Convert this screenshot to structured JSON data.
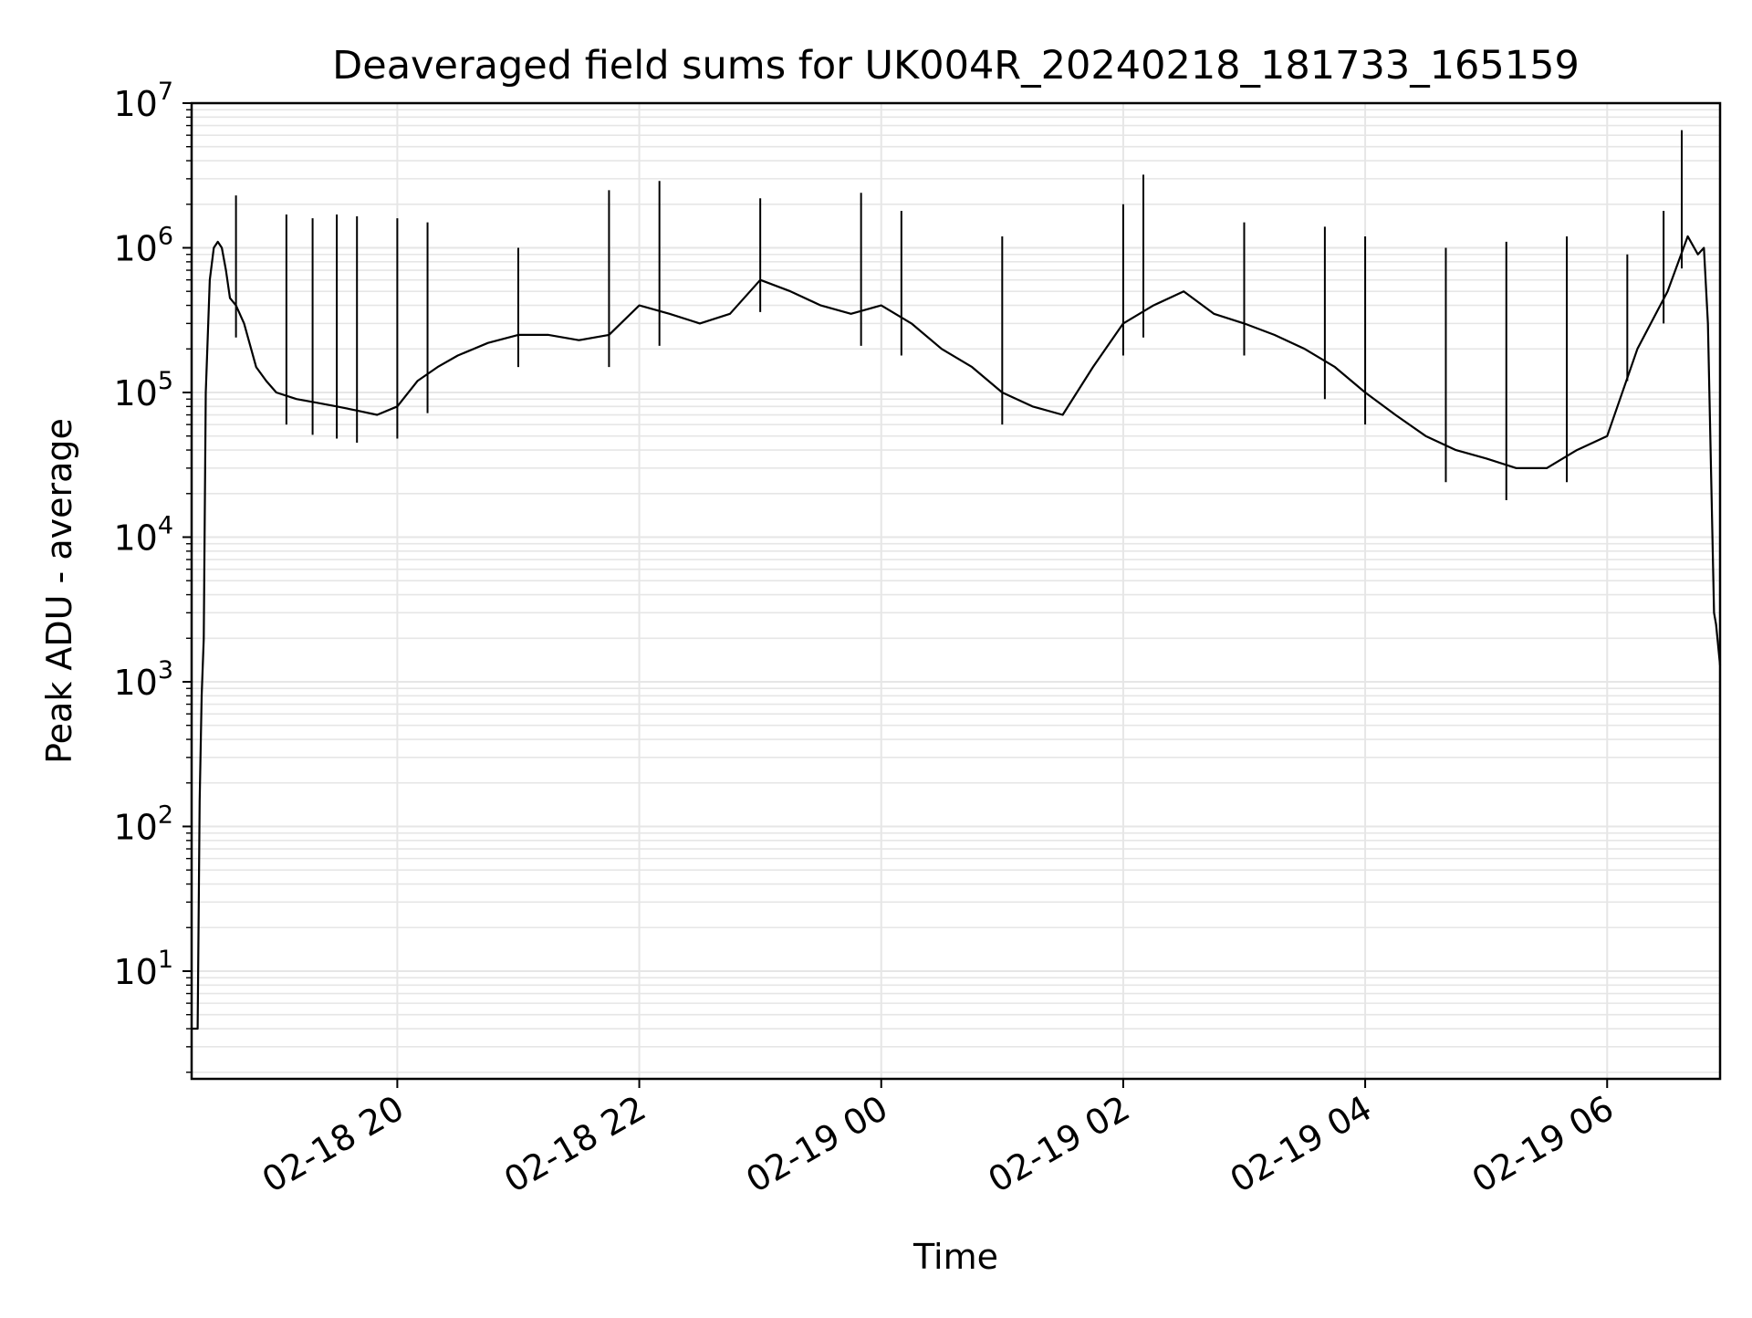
{
  "chart_data": {
    "type": "line",
    "title": "Deaveraged field sums for UK004R_20240218_181733_165159",
    "xlabel": "Time",
    "ylabel": "Peak ADU - average",
    "yscale": "log",
    "ylim": [
      1.8,
      10000000
    ],
    "xlim": [
      "2024-02-18 18:18",
      "2024-02-19 06:56"
    ],
    "grid": true,
    "line_color": "#000000",
    "grid_color": "#e6e6e6",
    "x_ticks": [
      {
        "value": "2024-02-18 20:00",
        "label": "02-18 20"
      },
      {
        "value": "2024-02-18 22:00",
        "label": "02-18 22"
      },
      {
        "value": "2024-02-19 00:00",
        "label": "02-19 00"
      },
      {
        "value": "2024-02-19 02:00",
        "label": "02-19 02"
      },
      {
        "value": "2024-02-19 04:00",
        "label": "02-19 04"
      },
      {
        "value": "2024-02-19 06:00",
        "label": "02-19 06"
      }
    ],
    "y_ticks": [
      {
        "value": 10,
        "base": "10",
        "exp": "1"
      },
      {
        "value": 100,
        "base": "10",
        "exp": "2"
      },
      {
        "value": 1000,
        "base": "10",
        "exp": "3"
      },
      {
        "value": 10000,
        "base": "10",
        "exp": "4"
      },
      {
        "value": 100000,
        "base": "10",
        "exp": "5"
      },
      {
        "value": 1000000,
        "base": "10",
        "exp": "6"
      },
      {
        "value": 10000000,
        "base": "10",
        "exp": "7"
      }
    ],
    "series": [
      {
        "x": [
          "2024-02-18 18:18",
          "2024-02-18 18:20",
          "2024-02-18 18:21",
          "2024-02-18 18:22",
          "2024-02-18 18:23",
          "2024-02-18 18:24",
          "2024-02-18 18:25",
          "2024-02-18 18:27",
          "2024-02-18 18:29",
          "2024-02-18 18:31",
          "2024-02-18 18:33",
          "2024-02-18 18:35",
          "2024-02-18 18:37",
          "2024-02-18 18:40",
          "2024-02-18 18:44",
          "2024-02-18 18:50",
          "2024-02-18 18:55",
          "2024-02-18 19:00",
          "2024-02-18 19:10",
          "2024-02-18 19:20",
          "2024-02-18 19:30",
          "2024-02-18 19:40",
          "2024-02-18 19:50",
          "2024-02-18 20:00",
          "2024-02-18 20:10",
          "2024-02-18 20:20",
          "2024-02-18 20:30",
          "2024-02-18 20:45",
          "2024-02-18 21:00",
          "2024-02-18 21:15",
          "2024-02-18 21:30",
          "2024-02-18 21:45",
          "2024-02-18 22:00",
          "2024-02-18 22:15",
          "2024-02-18 22:30",
          "2024-02-18 22:45",
          "2024-02-18 23:00",
          "2024-02-18 23:15",
          "2024-02-18 23:30",
          "2024-02-18 23:45",
          "2024-02-19 00:00",
          "2024-02-19 00:15",
          "2024-02-19 00:30",
          "2024-02-19 00:45",
          "2024-02-19 01:00",
          "2024-02-19 01:15",
          "2024-02-19 01:30",
          "2024-02-19 01:45",
          "2024-02-19 02:00",
          "2024-02-19 02:15",
          "2024-02-19 02:30",
          "2024-02-19 02:45",
          "2024-02-19 03:00",
          "2024-02-19 03:15",
          "2024-02-19 03:30",
          "2024-02-19 03:45",
          "2024-02-19 04:00",
          "2024-02-19 04:15",
          "2024-02-19 04:30",
          "2024-02-19 04:45",
          "2024-02-19 05:00",
          "2024-02-19 05:15",
          "2024-02-19 05:30",
          "2024-02-19 05:45",
          "2024-02-19 06:00",
          "2024-02-19 06:15",
          "2024-02-19 06:30",
          "2024-02-19 06:40",
          "2024-02-19 06:45",
          "2024-02-19 06:48",
          "2024-02-19 06:50",
          "2024-02-19 06:53",
          "2024-02-19 06:54",
          "2024-02-19 06:56"
        ],
        "y": [
          4,
          4,
          4,
          150,
          800,
          2000,
          100000,
          600000,
          1000000,
          1100000,
          1000000,
          700000,
          450000,
          400000,
          300000,
          150000,
          120000,
          100000,
          90000,
          85000,
          80000,
          75000,
          70000,
          80000,
          120000,
          150000,
          180000,
          220000,
          250000,
          250000,
          230000,
          250000,
          400000,
          350000,
          300000,
          350000,
          600000,
          500000,
          400000,
          350000,
          400000,
          300000,
          200000,
          150000,
          100000,
          80000,
          70000,
          150000,
          300000,
          400000,
          500000,
          350000,
          300000,
          250000,
          200000,
          150000,
          100000,
          70000,
          50000,
          40000,
          35000,
          30000,
          30000,
          40000,
          50000,
          200000,
          500000,
          1200000,
          900000,
          1000000,
          300000,
          3000,
          2500,
          1300
        ]
      },
      {
        "name": "",
        "x": [
          "2024-02-18 18:40",
          "2024-02-18 19:05",
          "2024-02-18 19:18",
          "2024-02-18 19:30",
          "2024-02-18 19:40",
          "2024-02-18 20:00",
          "2024-02-18 20:15",
          "2024-02-18 21:00",
          "2024-02-18 21:45",
          "2024-02-18 22:10",
          "2024-02-18 23:00",
          "2024-02-18 23:50",
          "2024-02-19 00:10",
          "2024-02-19 01:00",
          "2024-02-19 02:00",
          "2024-02-19 02:10",
          "2024-02-19 03:00",
          "2024-02-19 03:40",
          "2024-02-19 04:00",
          "2024-02-19 04:40",
          "2024-02-19 05:10",
          "2024-02-19 05:40",
          "2024-02-19 06:10",
          "2024-02-19 06:28",
          "2024-02-19 06:37"
        ],
        "y": [
          2300000,
          1700000,
          1600000,
          1700000,
          1650000,
          1600000,
          1500000,
          1000000,
          2500000,
          2900000,
          2200000,
          2400000,
          1800000,
          1200000,
          2000000,
          3200000,
          1500000,
          1400000,
          1200000,
          1000000,
          1100000,
          1200000,
          900000,
          1800000,
          6500000
        ]
      }
    ]
  }
}
